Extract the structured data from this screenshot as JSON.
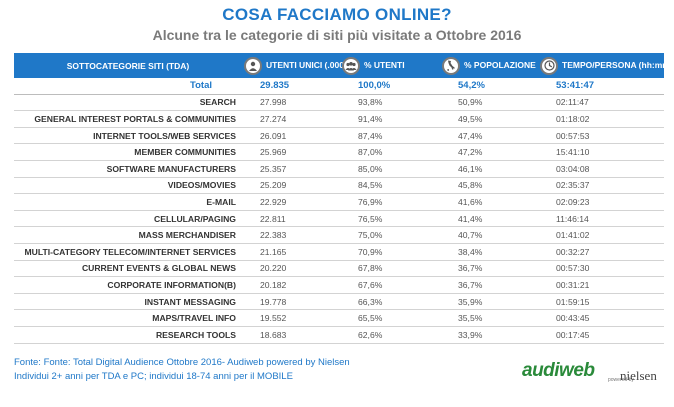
{
  "title": "COSA FACCIAMO ONLINE?",
  "subtitle": "Alcune tra le categorie di siti più visitate a Ottobre 2016",
  "table": {
    "headers": {
      "category": "SOTTOCATEGORIE SITI  (TDA)",
      "users": "UTENTI UNICI (.000)",
      "users_pct": "% UTENTI",
      "population": "% POPOLAZIONE",
      "time": "TEMPO/PERSONA (hh:mm)"
    },
    "header_icons": [
      "person-icon",
      "group-icon",
      "italy-map-icon",
      "clock-icon"
    ],
    "total": {
      "name": "Total",
      "users": "29.835",
      "users_pct": "100,0%",
      "population": "54,2%",
      "time": "53:41:47"
    },
    "rows": [
      {
        "name": "SEARCH",
        "users": "27.998",
        "users_pct": "93,8%",
        "population": "50,9%",
        "time": "02:11:47"
      },
      {
        "name": "GENERAL INTEREST PORTALS & COMMUNITIES",
        "users": "27.274",
        "users_pct": "91,4%",
        "population": "49,5%",
        "time": "01:18:02"
      },
      {
        "name": "INTERNET TOOLS/WEB SERVICES",
        "users": "26.091",
        "users_pct": "87,4%",
        "population": "47,4%",
        "time": "00:57:53"
      },
      {
        "name": "MEMBER COMMUNITIES",
        "users": "25.969",
        "users_pct": "87,0%",
        "population": "47,2%",
        "time": "15:41:10"
      },
      {
        "name": "SOFTWARE MANUFACTURERS",
        "users": "25.357",
        "users_pct": "85,0%",
        "population": "46,1%",
        "time": "03:04:08"
      },
      {
        "name": "VIDEOS/MOVIES",
        "users": "25.209",
        "users_pct": "84,5%",
        "population": "45,8%",
        "time": "02:35:37"
      },
      {
        "name": "E-MAIL",
        "users": "22.929",
        "users_pct": "76,9%",
        "population": "41,6%",
        "time": "02:09:23"
      },
      {
        "name": "CELLULAR/PAGING",
        "users": "22.811",
        "users_pct": "76,5%",
        "population": "41,4%",
        "time": "11:46:14"
      },
      {
        "name": "MASS MERCHANDISER",
        "users": "22.383",
        "users_pct": "75,0%",
        "population": "40,7%",
        "time": "01:41:02"
      },
      {
        "name": "MULTI-CATEGORY TELECOM/INTERNET SERVICES",
        "users": "21.165",
        "users_pct": "70,9%",
        "population": "38,4%",
        "time": "00:32:27"
      },
      {
        "name": "CURRENT EVENTS & GLOBAL NEWS",
        "users": "20.220",
        "users_pct": "67,8%",
        "population": "36,7%",
        "time": "00:57:30"
      },
      {
        "name": "CORPORATE INFORMATION(B)",
        "users": "20.182",
        "users_pct": "67,6%",
        "population": "36,7%",
        "time": "00:31:21"
      },
      {
        "name": "INSTANT MESSAGING",
        "users": "19.778",
        "users_pct": "66,3%",
        "population": "35,9%",
        "time": "01:59:15"
      },
      {
        "name": "MAPS/TRAVEL INFO",
        "users": "19.552",
        "users_pct": "65,5%",
        "population": "35,5%",
        "time": "00:43:45"
      },
      {
        "name": "RESEARCH TOOLS",
        "users": "18.683",
        "users_pct": "62,6%",
        "population": "33,9%",
        "time": "00:17:45"
      }
    ]
  },
  "notes": {
    "source": "Fonte: Fonte: Total Digital Audience Ottobre 2016- Audiweb powered by Nielsen",
    "detail": "Individui 2+ anni per TDA e PC; individui 18-74 anni per il MOBILE"
  },
  "logo": {
    "brand": "audiweb",
    "powered": "powered by",
    "partner": "nielsen"
  },
  "colors": {
    "accent": "#1f78c8",
    "header_bg": "#1f78c8",
    "logo_green": "#2a8a3a"
  }
}
